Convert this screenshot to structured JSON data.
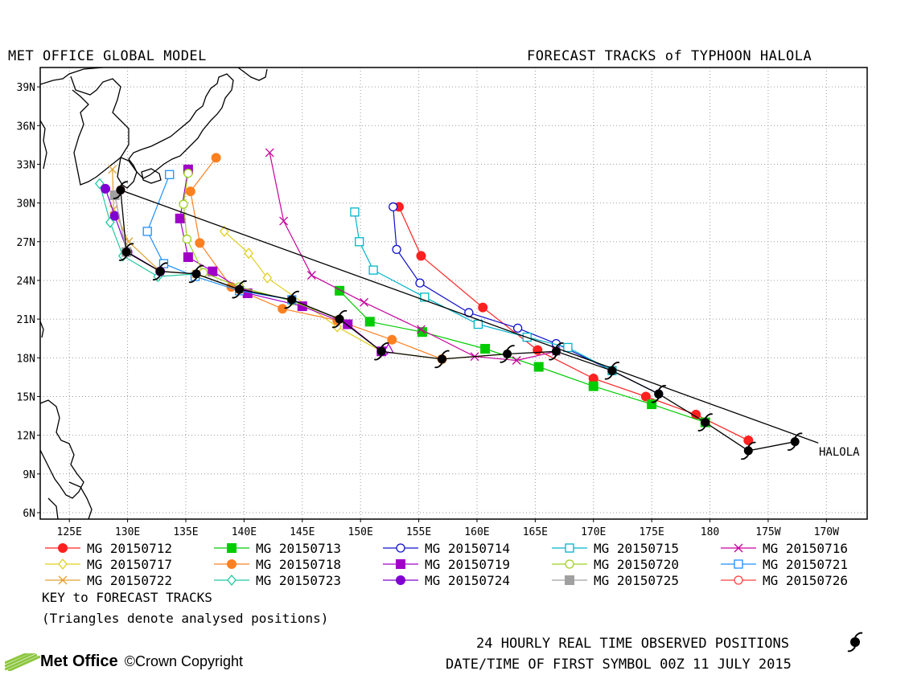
{
  "header": {
    "left_title": "MET OFFICE GLOBAL MODEL",
    "right_title": "FORECAST TRACKS of TYPHOON HALOLA"
  },
  "map": {
    "lat_labels": [
      "39N",
      "36N",
      "33N",
      "30N",
      "27N",
      "24N",
      "21N",
      "18N",
      "15N",
      "12N",
      "9N",
      "6N"
    ],
    "lat_values": [
      39,
      36,
      33,
      30,
      27,
      24,
      21,
      18,
      15,
      12,
      9,
      6
    ],
    "lon_labels": [
      "125E",
      "130E",
      "135E",
      "140E",
      "145E",
      "150E",
      "155E",
      "160E",
      "165E",
      "170E",
      "175E",
      "180",
      "175W",
      "170W"
    ],
    "lon_values": [
      125,
      130,
      135,
      140,
      145,
      150,
      155,
      160,
      165,
      170,
      175,
      180,
      185,
      190
    ],
    "lon_range": [
      122.5,
      193.5
    ],
    "lat_range": [
      5.5,
      40.5
    ],
    "storm_label": "HALOLA",
    "observed_track": [
      [
        187.3,
        11.5
      ],
      [
        183.3,
        10.8
      ],
      [
        179.6,
        13.0
      ],
      [
        175.6,
        15.2
      ],
      [
        171.6,
        17.0
      ],
      [
        166.8,
        18.5
      ],
      [
        162.6,
        18.3
      ],
      [
        157.0,
        17.9
      ],
      [
        151.8,
        18.5
      ],
      [
        148.2,
        21.0
      ],
      [
        144.1,
        22.5
      ],
      [
        139.6,
        23.3
      ],
      [
        135.9,
        24.5
      ],
      [
        132.8,
        24.7
      ],
      [
        129.9,
        26.2
      ],
      [
        129.4,
        31.0
      ]
    ]
  },
  "legend": [
    {
      "label": "MG 20150712",
      "color": "#ff2020",
      "marker": "filled-circle"
    },
    {
      "label": "MG 20150713",
      "color": "#00cc00",
      "marker": "filled-square"
    },
    {
      "label": "MG 20150714",
      "color": "#1010cc",
      "marker": "open-circle"
    },
    {
      "label": "MG 20150715",
      "color": "#00b4c8",
      "marker": "open-square"
    },
    {
      "label": "MG 20150716",
      "color": "#c8009c",
      "marker": "x"
    },
    {
      "label": "MG 20150717",
      "color": "#e0d020",
      "marker": "open-diamond"
    },
    {
      "label": "MG 20150718",
      "color": "#ff8020",
      "marker": "filled-circle"
    },
    {
      "label": "MG 20150719",
      "color": "#a000c8",
      "marker": "filled-square"
    },
    {
      "label": "MG 20150720",
      "color": "#a0d020",
      "marker": "open-circle"
    },
    {
      "label": "MG 20150721",
      "color": "#1e90ff",
      "marker": "open-square"
    },
    {
      "label": "MG 20150722",
      "color": "#e0a030",
      "marker": "x"
    },
    {
      "label": "MG 20150723",
      "color": "#20c8a0",
      "marker": "open-diamond"
    },
    {
      "label": "MG 20150724",
      "color": "#8000d0",
      "marker": "filled-circle"
    },
    {
      "label": "MG 20150725",
      "color": "#a0a0a0",
      "marker": "filled-square"
    },
    {
      "label": "MG 20150726",
      "color": "#ff4040",
      "marker": "open-circle"
    }
  ],
  "key_title": "KEY to FORECAST TRACKS",
  "key_note": "(Triangles denote analysed positions)",
  "footer": {
    "observed_label": "24 HOURLY REAL TIME OBSERVED POSITIONS",
    "datetime_label": "DATE/TIME OF FIRST SYMBOL 00Z 11 JULY 2015",
    "logo_text": "Met Office",
    "copyright": "©Crown Copyright"
  },
  "forecast_tracks": [
    {
      "key": "MG 20150712",
      "points": [
        [
          183.3,
          11.6
        ],
        [
          178.8,
          13.6
        ],
        [
          174.5,
          15.0
        ],
        [
          170.0,
          16.4
        ],
        [
          165.2,
          18.6
        ],
        [
          160.5,
          21.9
        ],
        [
          155.2,
          25.9
        ],
        [
          153.3,
          29.7
        ]
      ]
    },
    {
      "key": "MG 20150713",
      "points": [
        [
          179.6,
          13.0
        ],
        [
          175.0,
          14.4
        ],
        [
          170.0,
          15.8
        ],
        [
          165.3,
          17.3
        ],
        [
          160.7,
          18.7
        ],
        [
          155.3,
          20.0
        ],
        [
          150.8,
          20.8
        ],
        [
          148.2,
          23.2
        ]
      ]
    },
    {
      "key": "MG 20150714",
      "points": [
        [
          175.6,
          15.2
        ],
        [
          171.6,
          17.0
        ],
        [
          166.8,
          19.1
        ],
        [
          163.5,
          20.3
        ],
        [
          159.3,
          21.5
        ],
        [
          155.1,
          23.8
        ],
        [
          153.1,
          26.4
        ],
        [
          152.8,
          29.7
        ]
      ]
    },
    {
      "key": "MG 20150715",
      "points": [
        [
          171.6,
          17.0
        ],
        [
          167.8,
          18.8
        ],
        [
          164.3,
          19.6
        ],
        [
          160.1,
          20.6
        ],
        [
          155.5,
          22.7
        ],
        [
          151.1,
          24.8
        ],
        [
          149.9,
          27.0
        ],
        [
          149.5,
          29.3
        ]
      ]
    },
    {
      "key": "MG 20150716",
      "points": [
        [
          166.8,
          18.5
        ],
        [
          163.4,
          17.8
        ],
        [
          159.8,
          18.1
        ],
        [
          155.2,
          20.2
        ],
        [
          150.3,
          22.3
        ],
        [
          145.8,
          24.4
        ],
        [
          143.4,
          28.6
        ],
        [
          142.2,
          33.9
        ]
      ]
    },
    {
      "key": "MG 20150717",
      "points": [
        [
          162.6,
          18.3
        ],
        [
          157.0,
          17.9
        ],
        [
          151.8,
          18.5
        ],
        [
          148.0,
          20.4
        ],
        [
          142.0,
          24.2
        ],
        [
          140.4,
          26.1
        ],
        [
          138.3,
          27.8
        ]
      ]
    },
    {
      "key": "MG 20150718",
      "points": [
        [
          157.0,
          17.9
        ],
        [
          152.7,
          19.4
        ],
        [
          148.0,
          20.9
        ],
        [
          143.3,
          21.8
        ],
        [
          138.9,
          23.5
        ],
        [
          136.2,
          26.9
        ],
        [
          135.4,
          30.9
        ],
        [
          137.6,
          33.5
        ]
      ]
    },
    {
      "key": "MG 20150719",
      "points": [
        [
          151.8,
          18.5
        ],
        [
          148.9,
          20.6
        ],
        [
          145.0,
          22.0
        ],
        [
          140.3,
          23.0
        ],
        [
          137.3,
          24.7
        ],
        [
          135.2,
          25.8
        ],
        [
          134.5,
          28.8
        ],
        [
          135.2,
          32.6
        ]
      ]
    },
    {
      "key": "MG 20150720",
      "points": [
        [
          148.2,
          21.0
        ],
        [
          144.1,
          22.4
        ],
        [
          139.6,
          23.5
        ],
        [
          136.5,
          24.6
        ],
        [
          135.1,
          27.2
        ],
        [
          134.8,
          29.9
        ],
        [
          135.2,
          32.3
        ]
      ]
    },
    {
      "key": "MG 20150721",
      "points": [
        [
          144.1,
          22.5
        ],
        [
          139.6,
          23.2
        ],
        [
          135.8,
          24.3
        ],
        [
          133.1,
          25.3
        ],
        [
          131.7,
          27.8
        ],
        [
          133.6,
          32.2
        ]
      ]
    },
    {
      "key": "MG 20150722",
      "points": [
        [
          139.6,
          23.3
        ],
        [
          135.9,
          24.5
        ],
        [
          132.8,
          24.7
        ],
        [
          130.1,
          27.0
        ],
        [
          128.8,
          29.5
        ],
        [
          128.7,
          32.6
        ]
      ]
    },
    {
      "key": "MG 20150723",
      "points": [
        [
          135.9,
          24.5
        ],
        [
          132.6,
          24.3
        ],
        [
          129.6,
          25.9
        ],
        [
          128.5,
          28.5
        ],
        [
          127.6,
          31.5
        ]
      ]
    },
    {
      "key": "MG 20150724",
      "points": [
        [
          132.8,
          24.7
        ],
        [
          130.0,
          26.2
        ],
        [
          128.9,
          29.0
        ],
        [
          128.1,
          31.1
        ]
      ]
    },
    {
      "key": "MG 20150725",
      "points": [
        [
          129.9,
          26.2
        ],
        [
          128.9,
          30.6
        ]
      ]
    },
    {
      "key": "MG 20150726",
      "points": [
        [
          129.4,
          31.0
        ]
      ]
    }
  ],
  "analysed_triangles": [
    [
      152.4,
      18.7
    ],
    [
      151.9,
      18.6
    ]
  ]
}
